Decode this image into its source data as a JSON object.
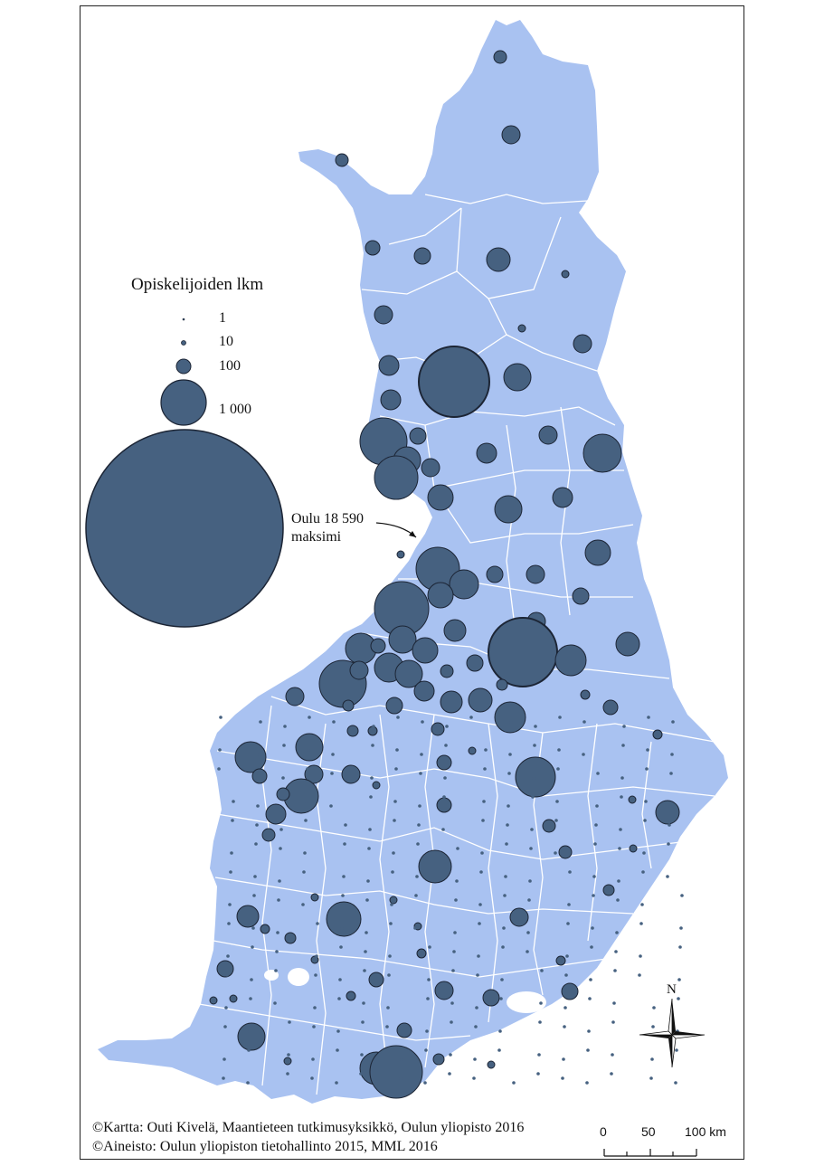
{
  "colors": {
    "land": "#a9c2f1",
    "boundary": "#ffffff",
    "symbol_fill": "#466180",
    "symbol_stroke": "#1c2535",
    "frame": "#222222"
  },
  "legend": {
    "title": "Opiskelijoiden lkm",
    "items": [
      {
        "value": 1,
        "label": "1"
      },
      {
        "value": 10,
        "label": "10"
      },
      {
        "value": 100,
        "label": "100"
      },
      {
        "value": 1000,
        "label": "1 000"
      }
    ],
    "max_symbol_value": 18590
  },
  "annotation": {
    "line1": "Oulu 18 590",
    "line2": "maksimi"
  },
  "credits": {
    "line1": "©Kartta: Outi Kivelä, Maantieteen tutkimusyksikkö, Oulun yliopisto 2016",
    "line2": "©Aineisto: Oulun yliopiston tietohallinto 2015, MML 2016"
  },
  "scale_bar": {
    "tick_labels": [
      "0",
      "50",
      "100 km"
    ]
  },
  "north_arrow": {
    "label": "N",
    "icon": "compass-rose-icon"
  }
}
